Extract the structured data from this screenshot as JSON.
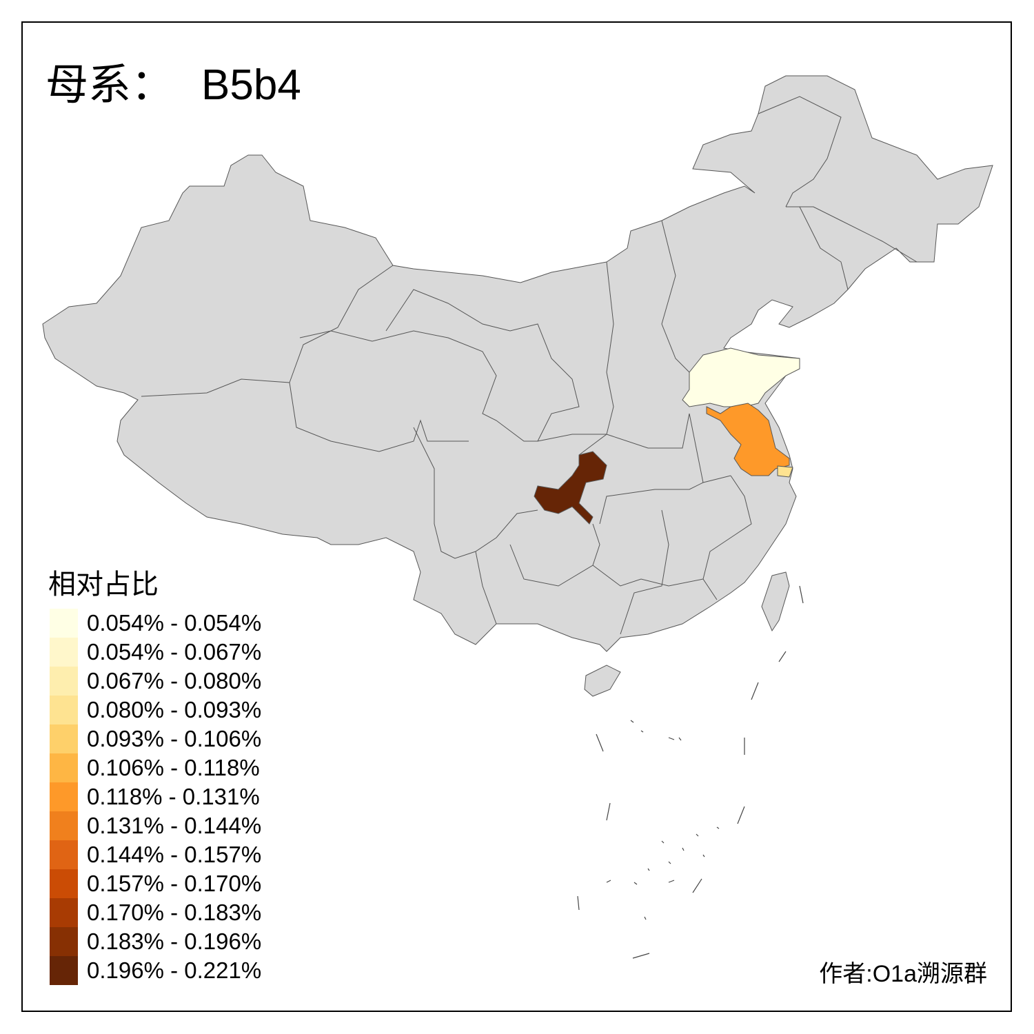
{
  "title": {
    "prefix": "母系：",
    "haplogroup": "B5b4"
  },
  "legend": {
    "title": "相对占比",
    "bins": [
      {
        "label": "0.054% - 0.054%",
        "color": "#FFFFE5"
      },
      {
        "label": "0.054% - 0.067%",
        "color": "#FFF7CB"
      },
      {
        "label": "0.067% - 0.080%",
        "color": "#FEEEAE"
      },
      {
        "label": "0.080% - 0.093%",
        "color": "#FEE391"
      },
      {
        "label": "0.093% - 0.106%",
        "color": "#FED06A"
      },
      {
        "label": "0.106% - 0.118%",
        "color": "#FEB644"
      },
      {
        "label": "0.118% - 0.131%",
        "color": "#FE9929"
      },
      {
        "label": "0.131% - 0.144%",
        "color": "#F0801D"
      },
      {
        "label": "0.144% - 0.157%",
        "color": "#E06414"
      },
      {
        "label": "0.157% - 0.170%",
        "color": "#CB4C05"
      },
      {
        "label": "0.170% - 0.183%",
        "color": "#A83B03"
      },
      {
        "label": "0.183% - 0.196%",
        "color": "#873003"
      },
      {
        "label": "0.196% - 0.221%",
        "color": "#662506"
      }
    ]
  },
  "map": {
    "no_data_color": "#D9D9D9",
    "highlighted_regions": [
      {
        "region": "Shandong",
        "bin": 0
      },
      {
        "region": "Jiangsu",
        "bin": 6
      },
      {
        "region": "Shanghai",
        "bin": 3
      },
      {
        "region": "Chongqing",
        "bin": 12
      }
    ]
  },
  "credit": "作者:O1a溯源群"
}
